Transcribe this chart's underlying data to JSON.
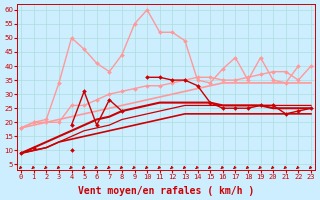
{
  "title": "",
  "xlabel": "Vent moyen/en rafales ( km/h )",
  "background_color": "#cceeff",
  "grid_color": "#aadddd",
  "x_ticks": [
    0,
    1,
    2,
    3,
    4,
    5,
    6,
    7,
    8,
    9,
    10,
    11,
    12,
    13,
    14,
    15,
    16,
    17,
    18,
    19,
    20,
    21,
    22,
    23
  ],
  "y_ticks": [
    5,
    10,
    15,
    20,
    25,
    30,
    35,
    40,
    45,
    50,
    55,
    60
  ],
  "ylim": [
    3,
    62
  ],
  "xlim": [
    -0.3,
    23.3
  ],
  "series": [
    {
      "x": [
        0,
        1,
        2,
        3,
        4,
        5,
        6,
        7,
        8,
        9,
        10,
        11,
        12,
        13,
        14,
        15,
        16,
        17,
        18,
        19,
        20,
        21,
        22,
        23
      ],
      "y": [
        18,
        20,
        21,
        34,
        50,
        46,
        41,
        38,
        44,
        55,
        60,
        52,
        52,
        49,
        35,
        34,
        39,
        43,
        35,
        43,
        35,
        34,
        40,
        null
      ],
      "color": "#ff9999",
      "lw": 1.0,
      "marker": "D",
      "ms": 2.0,
      "zorder": 2
    },
    {
      "x": [
        0,
        1,
        2,
        3,
        4,
        5,
        6,
        7,
        8,
        9,
        10,
        11,
        12,
        13,
        14,
        15,
        16,
        17,
        18,
        19,
        20,
        21,
        22,
        23
      ],
      "y": [
        18,
        20,
        20,
        20,
        26,
        26,
        28,
        30,
        31,
        32,
        33,
        33,
        34,
        35,
        36,
        36,
        35,
        35,
        36,
        37,
        38,
        38,
        35,
        40
      ],
      "color": "#ff9999",
      "lw": 1.0,
      "marker": "D",
      "ms": 2.0,
      "zorder": 2
    },
    {
      "x": [
        0,
        1,
        2,
        3,
        4,
        5,
        6,
        7,
        8,
        9,
        10,
        11,
        12,
        13,
        14,
        15,
        16,
        17,
        18,
        19,
        20,
        21,
        22,
        23
      ],
      "y": [
        null,
        null,
        null,
        null,
        19,
        31,
        19,
        28,
        24,
        null,
        36,
        36,
        35,
        35,
        33,
        27,
        25,
        25,
        25,
        26,
        26,
        23,
        24,
        25
      ],
      "color": "#cc0000",
      "lw": 1.0,
      "marker": "D",
      "ms": 2.0,
      "zorder": 5
    },
    {
      "x": [
        0,
        1,
        2,
        3,
        4,
        5,
        6,
        7,
        8,
        9,
        10,
        11,
        12,
        13,
        14,
        15,
        16,
        17,
        18,
        19,
        20,
        21,
        22,
        23
      ],
      "y": [
        9,
        11,
        null,
        null,
        10,
        null,
        null,
        null,
        null,
        null,
        null,
        null,
        null,
        null,
        null,
        null,
        null,
        null,
        null,
        null,
        null,
        null,
        null,
        null
      ],
      "color": "#cc0000",
      "lw": 1.0,
      "marker": "D",
      "ms": 2.0,
      "zorder": 5
    },
    {
      "x": [
        0,
        1,
        2,
        3,
        4,
        5,
        6,
        7,
        8,
        9,
        10,
        11,
        12,
        13,
        14,
        15,
        16,
        17,
        18,
        19,
        20,
        21,
        22,
        23
      ],
      "y": [
        9,
        10,
        11,
        13,
        14,
        15,
        16,
        17,
        18,
        19,
        20,
        21,
        22,
        23,
        23,
        23,
        23,
        23,
        23,
        23,
        23,
        23,
        23,
        23
      ],
      "color": "#cc0000",
      "lw": 1.2,
      "marker": null,
      "ms": 0,
      "zorder": 3
    },
    {
      "x": [
        0,
        1,
        2,
        3,
        4,
        5,
        6,
        7,
        8,
        9,
        10,
        11,
        12,
        13,
        14,
        15,
        16,
        17,
        18,
        19,
        20,
        21,
        22,
        23
      ],
      "y": [
        9,
        11,
        13,
        15,
        17,
        19,
        21,
        22,
        24,
        25,
        26,
        27,
        27,
        27,
        27,
        27,
        26,
        26,
        26,
        26,
        25,
        25,
        25,
        25
      ],
      "color": "#cc0000",
      "lw": 1.5,
      "marker": null,
      "ms": 0,
      "zorder": 3
    },
    {
      "x": [
        0,
        1,
        2,
        3,
        4,
        5,
        6,
        7,
        8,
        9,
        10,
        11,
        12,
        13,
        14,
        15,
        16,
        17,
        18,
        19,
        20,
        21,
        22,
        23
      ],
      "y": [
        18,
        19,
        20,
        21,
        22,
        23,
        24,
        25,
        26,
        27,
        28,
        29,
        30,
        31,
        32,
        33,
        34,
        34,
        34,
        34,
        34,
        34,
        34,
        34
      ],
      "color": "#ff9999",
      "lw": 1.2,
      "marker": null,
      "ms": 0,
      "zorder": 2
    },
    {
      "x": [
        0,
        1,
        2,
        3,
        4,
        5,
        6,
        7,
        8,
        9,
        10,
        11,
        12,
        13,
        14,
        15,
        16,
        17,
        18,
        19,
        20,
        21,
        22,
        23
      ],
      "y": [
        9,
        10,
        11,
        13,
        15,
        17,
        18,
        19,
        21,
        22,
        23,
        24,
        25,
        26,
        26,
        26,
        26,
        26,
        26,
        26,
        26,
        26,
        26,
        26
      ],
      "color": "#cc0000",
      "lw": 0.9,
      "marker": null,
      "ms": 0,
      "zorder": 3
    }
  ],
  "arrow_color": "#cc0000",
  "xlabel_color": "#cc0000",
  "xlabel_fontsize": 7,
  "tick_fontsize": 5,
  "tick_color": "#cc0000"
}
